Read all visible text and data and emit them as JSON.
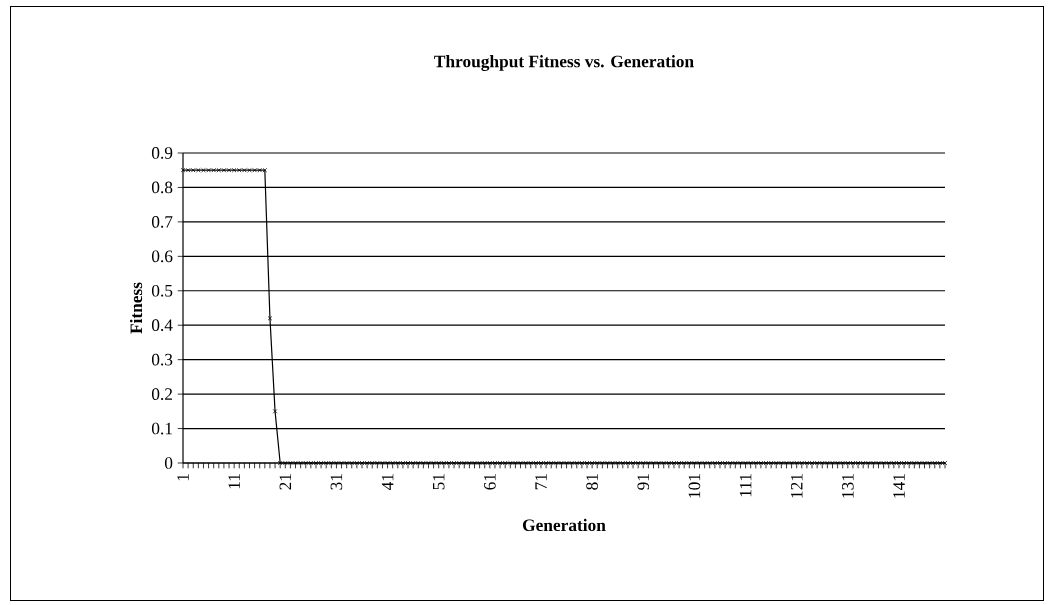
{
  "chart_data": {
    "type": "line",
    "title": "Throughput Fitness vs. Generation",
    "xlabel": "Generation",
    "ylabel": "Fitness",
    "categories": [
      "1",
      null,
      null,
      null,
      null,
      null,
      null,
      null,
      null,
      null,
      "11",
      null,
      null,
      null,
      null,
      null,
      null,
      null,
      null,
      null,
      "21",
      null,
      null,
      null,
      null,
      null,
      null,
      null,
      null,
      null,
      "31",
      null,
      null,
      null,
      null,
      null,
      null,
      null,
      null,
      null,
      "41",
      null,
      null,
      null,
      null,
      null,
      null,
      null,
      null,
      null,
      "51",
      null,
      null,
      null,
      null,
      null,
      null,
      null,
      null,
      null,
      "61",
      null,
      null,
      null,
      null,
      null,
      null,
      null,
      null,
      null,
      "71",
      null,
      null,
      null,
      null,
      null,
      null,
      null,
      null,
      null,
      "81",
      null,
      null,
      null,
      null,
      null,
      null,
      null,
      null,
      null,
      "91",
      null,
      null,
      null,
      null,
      null,
      null,
      null,
      null,
      null,
      "101",
      null,
      null,
      null,
      null,
      null,
      null,
      null,
      null,
      null,
      "111",
      null,
      null,
      null,
      null,
      null,
      null,
      null,
      null,
      null,
      "121",
      null,
      null,
      null,
      null,
      null,
      null,
      null,
      null,
      null,
      "131",
      null,
      null,
      null,
      null,
      null,
      null,
      null,
      null,
      null,
      "141",
      null,
      null,
      null,
      null,
      null,
      null,
      null,
      null,
      null
    ],
    "series": [
      {
        "color": "#000000",
        "values": [
          0.85,
          0.85,
          0.85,
          0.85,
          0.85,
          0.85,
          0.85,
          0.85,
          0.85,
          0.85,
          0.85,
          0.85,
          0.85,
          0.85,
          0.85,
          0.85,
          0.85,
          0.42,
          0.15,
          0,
          0,
          0,
          0,
          0,
          0,
          0,
          0,
          0,
          0,
          0,
          0,
          0,
          0,
          0,
          0,
          0,
          0,
          0,
          0,
          0,
          0,
          0,
          0,
          0,
          0,
          0,
          0,
          0,
          0,
          0,
          0,
          0,
          0,
          0,
          0,
          0,
          0,
          0,
          0,
          0,
          0,
          0,
          0,
          0,
          0,
          0,
          0,
          0,
          0,
          0,
          0,
          0,
          0,
          0,
          0,
          0,
          0,
          0,
          0,
          0,
          0,
          0,
          0,
          0,
          0,
          0,
          0,
          0,
          0,
          0,
          0,
          0,
          0,
          0,
          0,
          0,
          0,
          0,
          0,
          0,
          0,
          0,
          0,
          0,
          0,
          0,
          0,
          0,
          0,
          0,
          0,
          0,
          0,
          0,
          0,
          0,
          0,
          0,
          0,
          0,
          0,
          0,
          0,
          0,
          0,
          0,
          0,
          0,
          0,
          0,
          0,
          0,
          0,
          0,
          0,
          0,
          0,
          0,
          0,
          0,
          0,
          0,
          0,
          0,
          0,
          0,
          0,
          0,
          0,
          0
        ]
      }
    ],
    "ylim": [
      0,
      0.9
    ],
    "yticks": [
      0,
      0.1,
      0.2,
      0.3,
      0.4,
      0.5,
      0.6,
      0.7,
      0.8,
      0.9
    ],
    "grid": "y",
    "marker": "cross",
    "line_style": "solid"
  }
}
